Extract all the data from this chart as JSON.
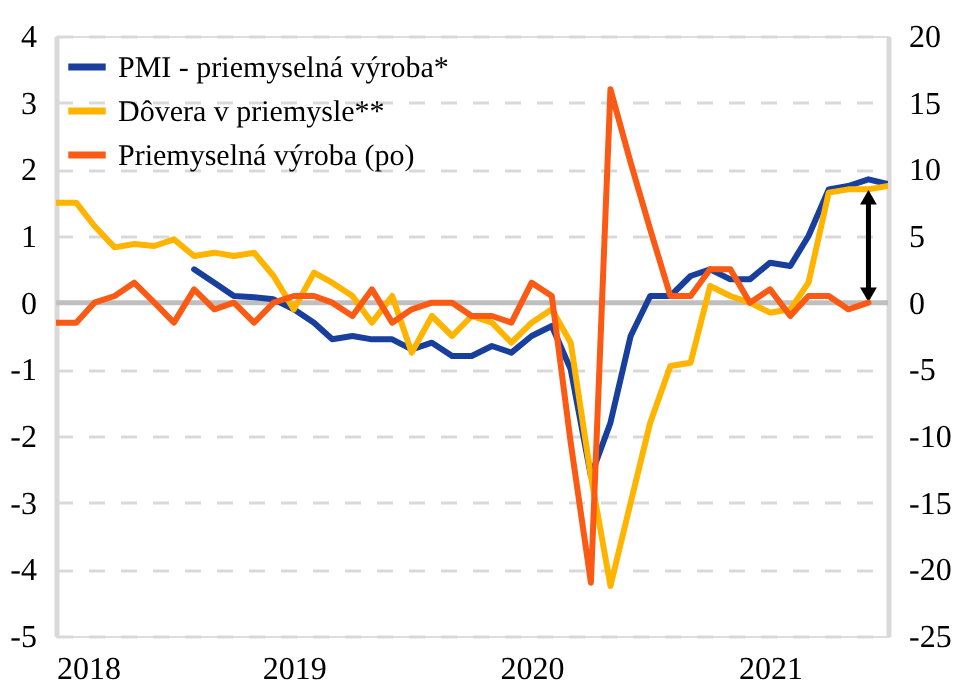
{
  "chart_data": {
    "type": "line",
    "xlim": [
      "2018-01",
      "2021-07"
    ],
    "xticks": [
      "2018",
      "2019",
      "2020",
      "2021"
    ],
    "ylim": [
      -5,
      4
    ],
    "yticks": [
      -5,
      -4,
      -3,
      -2,
      -1,
      0,
      1,
      2,
      3,
      4
    ],
    "y2lim": [
      -25,
      20
    ],
    "y2ticks": [
      -25,
      -20,
      -15,
      -10,
      -5,
      0,
      5,
      10,
      15,
      20
    ],
    "grid": "y",
    "legend": "top left",
    "marker": "none",
    "line_style": "solid",
    "ref_lines": [
      {
        "axis": "y",
        "value": 0,
        "color": "#bfbfbf"
      }
    ],
    "series": [
      {
        "name": "PMI - priemyselná výroba*",
        "color": "#183f9c",
        "x": [
          "2018-08",
          "2018-09",
          "2018-10",
          "2018-11",
          "2018-12",
          "2019-01",
          "2019-02",
          "2019-03",
          "2019-04",
          "2019-05",
          "2019-06",
          "2019-07",
          "2019-08",
          "2019-09",
          "2019-10",
          "2019-11",
          "2019-12",
          "2020-01",
          "2020-02",
          "2020-03",
          "2020-04",
          "2020-05",
          "2020-06",
          "2020-07",
          "2020-08",
          "2020-09",
          "2020-10",
          "2020-11",
          "2020-12",
          "2021-01",
          "2021-02",
          "2021-03",
          "2021-04",
          "2021-05",
          "2021-06",
          "2021-07"
        ],
        "values": [
          0.5,
          0.3,
          0.1,
          0.08,
          0.05,
          -0.1,
          -0.3,
          -0.55,
          -0.5,
          -0.55,
          -0.55,
          -0.7,
          -0.6,
          -0.8,
          -0.8,
          -0.65,
          -0.75,
          -0.5,
          -0.35,
          -1.0,
          -2.6,
          -1.8,
          -0.5,
          0.1,
          0.1,
          0.4,
          0.5,
          0.35,
          0.35,
          0.6,
          0.55,
          1.0,
          1.7,
          1.75,
          1.85,
          1.78
        ]
      },
      {
        "name": "Dôvera v priemysle**",
        "color": "#ffb400",
        "x": [
          "2018-01",
          "2018-02",
          "2018-03",
          "2018-04",
          "2018-05",
          "2018-06",
          "2018-07",
          "2018-08",
          "2018-09",
          "2018-10",
          "2018-11",
          "2018-12",
          "2019-01",
          "2019-02",
          "2019-03",
          "2019-04",
          "2019-05",
          "2019-06",
          "2019-07",
          "2019-08",
          "2019-09",
          "2019-10",
          "2019-11",
          "2019-12",
          "2020-01",
          "2020-02",
          "2020-03",
          "2020-04",
          "2020-05",
          "2020-06",
          "2020-07",
          "2020-08",
          "2020-09",
          "2020-10",
          "2020-11",
          "2020-12",
          "2021-01",
          "2021-02",
          "2021-03",
          "2021-04",
          "2021-05",
          "2021-06",
          "2021-07"
        ],
        "values": [
          1.5,
          1.5,
          1.15,
          0.83,
          0.88,
          0.85,
          0.95,
          0.7,
          0.75,
          0.7,
          0.75,
          0.4,
          -0.1,
          0.45,
          0.3,
          0.1,
          -0.3,
          0.1,
          -0.75,
          -0.2,
          -0.5,
          -0.2,
          -0.3,
          -0.6,
          -0.3,
          -0.1,
          -0.6,
          -2.6,
          -4.25,
          -3.0,
          -1.8,
          -0.95,
          -0.9,
          0.25,
          0.1,
          0.0,
          -0.15,
          -0.1,
          0.3,
          1.65,
          1.7,
          1.7,
          1.75
        ]
      },
      {
        "name": "Priemyselná výroba (po)",
        "color": "#fa5a14",
        "axis": "y2",
        "x": [
          "2018-01",
          "2018-02",
          "2018-03",
          "2018-04",
          "2018-05",
          "2018-06",
          "2018-07",
          "2018-08",
          "2018-09",
          "2018-10",
          "2018-11",
          "2018-12",
          "2019-01",
          "2019-02",
          "2019-03",
          "2019-04",
          "2019-05",
          "2019-06",
          "2019-07",
          "2019-08",
          "2019-09",
          "2019-10",
          "2019-11",
          "2019-12",
          "2020-01",
          "2020-02",
          "2020-03",
          "2020-04",
          "2020-05",
          "2020-06",
          "2020-07",
          "2020-08",
          "2020-09",
          "2020-10",
          "2020-11",
          "2020-12",
          "2021-01",
          "2021-02",
          "2021-03",
          "2021-04",
          "2021-05",
          "2021-06"
        ],
        "values": [
          -1.5,
          -1.5,
          0,
          0.5,
          1.5,
          0,
          -1.5,
          1,
          -0.5,
          0,
          -1.5,
          0,
          0.5,
          0.5,
          0,
          -1,
          1,
          -1.5,
          -0.5,
          0,
          0,
          -1,
          -1,
          -1.5,
          1.5,
          0.5,
          -10.5,
          -21,
          16,
          10.5,
          5.5,
          0.5,
          0.5,
          2.5,
          2.5,
          0,
          1,
          -1,
          0.5,
          0.5,
          -0.5,
          0
        ]
      }
    ]
  }
}
